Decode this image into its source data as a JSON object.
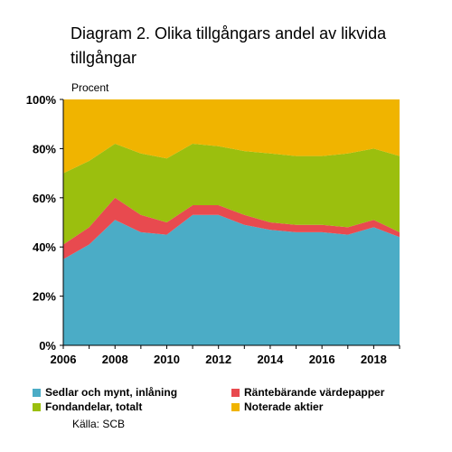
{
  "title": "Diagram 2. Olika tillgångars andel av likvida tillgångar",
  "subtitle": "Procent",
  "source": "Källa: SCB",
  "chart_data": {
    "type": "area",
    "stacked": true,
    "title": "Diagram 2. Olika tillgångars andel av likvida tillgångar",
    "subtitle": "Procent",
    "x": [
      2006,
      2007,
      2008,
      2009,
      2010,
      2011,
      2012,
      2013,
      2014,
      2015,
      2016,
      2017,
      2018,
      2019
    ],
    "xticks": [
      "2006",
      "2008",
      "2010",
      "2012",
      "2014",
      "2016",
      "2018"
    ],
    "yticks": [
      "0%",
      "20%",
      "40%",
      "60%",
      "80%",
      "100%"
    ],
    "ylim": [
      0,
      100
    ],
    "xlim": [
      2006,
      2019
    ],
    "grid": false,
    "legend_position": "bottom",
    "series": [
      {
        "name": "Sedlar och mynt, inlåning",
        "color": "#4bacc6",
        "values": [
          35,
          41,
          51,
          46,
          45,
          53,
          53,
          49,
          47,
          46,
          46,
          45,
          48,
          44
        ]
      },
      {
        "name": "Räntebärande värdepapper",
        "color": "#e84a4f",
        "values": [
          6,
          7,
          9,
          7,
          5,
          4,
          4,
          4,
          3,
          3,
          3,
          3,
          3,
          2
        ]
      },
      {
        "name": "Fondandelar, totalt",
        "color": "#9bbf0e",
        "values": [
          29,
          27,
          22,
          25,
          26,
          25,
          24,
          26,
          28,
          28,
          28,
          30,
          29,
          31
        ]
      },
      {
        "name": "Noterade aktier",
        "color": "#f0b400",
        "values": [
          30,
          25,
          18,
          22,
          24,
          18,
          19,
          21,
          22,
          23,
          23,
          22,
          20,
          23
        ]
      }
    ]
  }
}
